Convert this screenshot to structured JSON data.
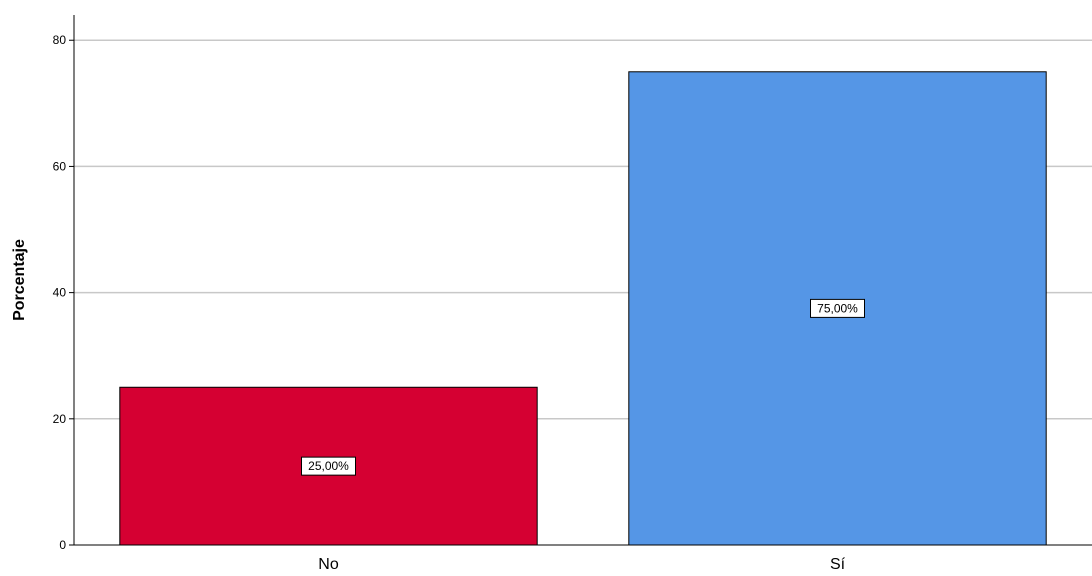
{
  "chart_data": {
    "type": "bar",
    "categories": [
      "No",
      "Sí"
    ],
    "values": [
      25,
      75
    ],
    "data_labels": [
      "25,00%",
      "75,00%"
    ],
    "colors": [
      "#D50032",
      "#5596E6"
    ],
    "ylabel": "Porcentaje",
    "xlabel": "",
    "ylim": [
      0,
      84
    ],
    "yticks": [
      0,
      20,
      40,
      60,
      80
    ],
    "grid": true,
    "legend": "none"
  }
}
